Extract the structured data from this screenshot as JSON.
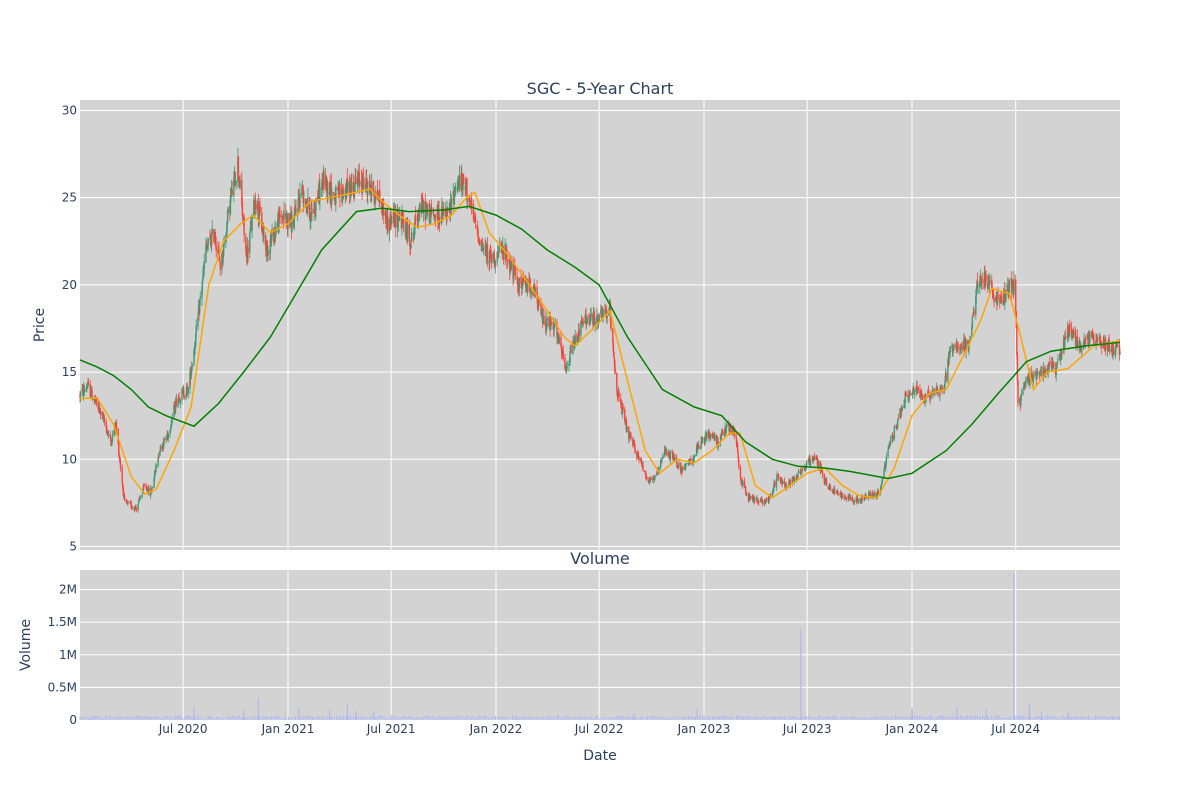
{
  "chart_data": [
    {
      "type": "candlestick",
      "title": "SGC - 5-Year Chart",
      "ylabel": "Price",
      "ylim": [
        4.8,
        30.6
      ],
      "yticks": [
        5,
        10,
        15,
        20,
        25,
        30
      ],
      "grid": true,
      "colors": {
        "up": "#3d9970",
        "down": "#ff4136",
        "ma_short": "#ffa500",
        "ma_long": "#008000",
        "plot_bg": "#d3d3d3"
      },
      "x_range": [
        "2020-01-02",
        "2024-12-31"
      ],
      "price_keypoints": [
        [
          "2020-01-02",
          13.7
        ],
        [
          "2020-01-15",
          14.2
        ],
        [
          "2020-02-10",
          12.5
        ],
        [
          "2020-02-25",
          11.0
        ],
        [
          "2020-03-05",
          12.0
        ],
        [
          "2020-03-20",
          7.5
        ],
        [
          "2020-04-10",
          7.2
        ],
        [
          "2020-04-25",
          8.5
        ],
        [
          "2020-05-05",
          8.0
        ],
        [
          "2020-05-20",
          10.5
        ],
        [
          "2020-06-05",
          11.5
        ],
        [
          "2020-06-20",
          13.5
        ],
        [
          "2020-07-10",
          14.0
        ],
        [
          "2020-07-25",
          17.5
        ],
        [
          "2020-08-10",
          22.0
        ],
        [
          "2020-08-25",
          23.0
        ],
        [
          "2020-09-05",
          21.0
        ],
        [
          "2020-09-20",
          24.5
        ],
        [
          "2020-10-05",
          27.0
        ],
        [
          "2020-10-20",
          21.5
        ],
        [
          "2020-11-05",
          25.0
        ],
        [
          "2020-11-25",
          22.0
        ],
        [
          "2020-12-20",
          24.0
        ],
        [
          "2021-01-10",
          23.5
        ],
        [
          "2021-01-25",
          25.5
        ],
        [
          "2021-02-10",
          24.0
        ],
        [
          "2021-03-05",
          26.0
        ],
        [
          "2021-03-25",
          25.0
        ],
        [
          "2021-04-15",
          25.5
        ],
        [
          "2021-05-10",
          26.0
        ],
        [
          "2021-06-10",
          25.0
        ],
        [
          "2021-06-25",
          23.5
        ],
        [
          "2021-07-15",
          24.0
        ],
        [
          "2021-08-05",
          22.5
        ],
        [
          "2021-08-20",
          24.5
        ],
        [
          "2021-09-10",
          24.0
        ],
        [
          "2021-10-10",
          24.0
        ],
        [
          "2021-10-25",
          26.0
        ],
        [
          "2021-11-10",
          25.5
        ],
        [
          "2021-11-25",
          23.5
        ],
        [
          "2021-12-10",
          22.0
        ],
        [
          "2021-12-25",
          21.5
        ],
        [
          "2022-01-15",
          22.0
        ],
        [
          "2022-02-10",
          20.0
        ],
        [
          "2022-03-05",
          20.0
        ],
        [
          "2022-03-25",
          18.0
        ],
        [
          "2022-04-15",
          17.5
        ],
        [
          "2022-05-05",
          15.0
        ],
        [
          "2022-05-15",
          16.5
        ],
        [
          "2022-06-05",
          18.0
        ],
        [
          "2022-06-25",
          18.0
        ],
        [
          "2022-07-20",
          18.5
        ],
        [
          "2022-08-01",
          14.0
        ],
        [
          "2022-08-20",
          11.5
        ],
        [
          "2022-09-10",
          10.0
        ],
        [
          "2022-09-25",
          8.8
        ],
        [
          "2022-10-10",
          9.0
        ],
        [
          "2022-10-25",
          10.5
        ],
        [
          "2022-11-10",
          10.0
        ],
        [
          "2022-11-25",
          9.3
        ],
        [
          "2022-12-10",
          10.0
        ],
        [
          "2022-12-25",
          10.8
        ],
        [
          "2023-01-10",
          11.5
        ],
        [
          "2023-01-25",
          11.0
        ],
        [
          "2023-02-10",
          11.8
        ],
        [
          "2023-02-25",
          11.5
        ],
        [
          "2023-03-05",
          9.0
        ],
        [
          "2023-03-20",
          7.8
        ],
        [
          "2023-04-10",
          7.6
        ],
        [
          "2023-04-25",
          7.7
        ],
        [
          "2023-05-10",
          9.0
        ],
        [
          "2023-05-25",
          8.5
        ],
        [
          "2023-06-10",
          9.0
        ],
        [
          "2023-06-25",
          9.5
        ],
        [
          "2023-07-15",
          10.2
        ],
        [
          "2023-08-05",
          8.5
        ],
        [
          "2023-08-25",
          8.0
        ],
        [
          "2023-09-15",
          7.8
        ],
        [
          "2023-10-01",
          7.6
        ],
        [
          "2023-10-20",
          8.0
        ],
        [
          "2023-11-05",
          8.0
        ],
        [
          "2023-11-20",
          10.5
        ],
        [
          "2023-12-05",
          12.0
        ],
        [
          "2023-12-20",
          13.5
        ],
        [
          "2024-01-10",
          14.0
        ],
        [
          "2024-01-25",
          13.5
        ],
        [
          "2024-02-10",
          14.0
        ],
        [
          "2024-02-25",
          14.0
        ],
        [
          "2024-03-10",
          16.5
        ],
        [
          "2024-03-25",
          16.5
        ],
        [
          "2024-04-10",
          16.5
        ],
        [
          "2024-04-25",
          20.0
        ],
        [
          "2024-05-10",
          20.5
        ],
        [
          "2024-05-20",
          19.5
        ],
        [
          "2024-06-05",
          19.0
        ],
        [
          "2024-06-20",
          20.0
        ],
        [
          "2024-06-30",
          20.0
        ],
        [
          "2024-07-05",
          13.0
        ],
        [
          "2024-07-20",
          14.5
        ],
        [
          "2024-08-10",
          15.0
        ],
        [
          "2024-08-25",
          15.3
        ],
        [
          "2024-09-10",
          15.2
        ],
        [
          "2024-10-01",
          17.5
        ],
        [
          "2024-10-20",
          16.5
        ],
        [
          "2024-11-10",
          17.0
        ],
        [
          "2024-12-31",
          16.2
        ]
      ],
      "ma_short": {
        "name": "",
        "points": [
          [
            "2020-01-02",
            13.5
          ],
          [
            "2020-02-01",
            13.5
          ],
          [
            "2020-03-01",
            12.0
          ],
          [
            "2020-04-01",
            9.0
          ],
          [
            "2020-04-25",
            8.0
          ],
          [
            "2020-05-15",
            8.3
          ],
          [
            "2020-06-15",
            10.5
          ],
          [
            "2020-07-15",
            13.0
          ],
          [
            "2020-08-15",
            20.0
          ],
          [
            "2020-09-10",
            22.5
          ],
          [
            "2020-10-10",
            23.5
          ],
          [
            "2020-11-01",
            24.0
          ],
          [
            "2020-12-01",
            23.0
          ],
          [
            "2021-01-01",
            23.5
          ],
          [
            "2021-02-10",
            24.8
          ],
          [
            "2021-03-15",
            25.0
          ],
          [
            "2021-04-15",
            25.2
          ],
          [
            "2021-05-25",
            25.5
          ],
          [
            "2021-06-15",
            24.8
          ],
          [
            "2021-07-15",
            24.0
          ],
          [
            "2021-08-15",
            23.3
          ],
          [
            "2021-09-15",
            23.5
          ],
          [
            "2021-10-15",
            24.0
          ],
          [
            "2021-11-10",
            25.0
          ],
          [
            "2021-11-25",
            25.3
          ],
          [
            "2021-12-20",
            23.0
          ],
          [
            "2022-01-20",
            21.8
          ],
          [
            "2022-03-01",
            20.0
          ],
          [
            "2022-04-01",
            18.5
          ],
          [
            "2022-05-01",
            17.0
          ],
          [
            "2022-05-20",
            16.5
          ],
          [
            "2022-06-20",
            17.5
          ],
          [
            "2022-07-20",
            18.5
          ],
          [
            "2022-08-20",
            14.5
          ],
          [
            "2022-09-20",
            10.5
          ],
          [
            "2022-10-15",
            9.2
          ],
          [
            "2022-11-15",
            10.0
          ],
          [
            "2022-12-15",
            9.8
          ],
          [
            "2023-01-15",
            10.5
          ],
          [
            "2023-02-15",
            11.5
          ],
          [
            "2023-03-05",
            11.5
          ],
          [
            "2023-04-01",
            8.5
          ],
          [
            "2023-05-01",
            7.8
          ],
          [
            "2023-06-01",
            8.5
          ],
          [
            "2023-07-01",
            9.2
          ],
          [
            "2023-08-01",
            9.5
          ],
          [
            "2023-09-01",
            8.5
          ],
          [
            "2023-10-01",
            7.9
          ],
          [
            "2023-11-01",
            7.8
          ],
          [
            "2023-12-01",
            9.5
          ],
          [
            "2024-01-01",
            12.5
          ],
          [
            "2024-02-01",
            13.8
          ],
          [
            "2024-03-01",
            14.0
          ],
          [
            "2024-04-01",
            16.0
          ],
          [
            "2024-05-01",
            18.0
          ],
          [
            "2024-05-20",
            19.8
          ],
          [
            "2024-06-20",
            19.5
          ],
          [
            "2024-07-10",
            17.0
          ],
          [
            "2024-08-01",
            14.0
          ],
          [
            "2024-08-25",
            15.0
          ],
          [
            "2024-10-01",
            15.2
          ],
          [
            "2024-11-15",
            16.5
          ],
          [
            "2024-12-31",
            16.8
          ]
        ]
      },
      "ma_long": {
        "name": "",
        "points": [
          [
            "2020-01-02",
            15.7
          ],
          [
            "2020-02-01",
            15.3
          ],
          [
            "2020-03-01",
            14.8
          ],
          [
            "2020-04-01",
            14.0
          ],
          [
            "2020-05-01",
            13.0
          ],
          [
            "2020-06-01",
            12.5
          ],
          [
            "2020-07-20",
            11.9
          ],
          [
            "2020-09-01",
            13.2
          ],
          [
            "2020-10-15",
            15.0
          ],
          [
            "2020-12-01",
            17.0
          ],
          [
            "2021-01-15",
            19.5
          ],
          [
            "2021-03-01",
            22.0
          ],
          [
            "2021-05-01",
            24.2
          ],
          [
            "2021-06-15",
            24.4
          ],
          [
            "2021-08-01",
            24.2
          ],
          [
            "2021-10-01",
            24.3
          ],
          [
            "2021-11-15",
            24.5
          ],
          [
            "2022-01-01",
            24.0
          ],
          [
            "2022-02-15",
            23.2
          ],
          [
            "2022-04-01",
            22.0
          ],
          [
            "2022-05-20",
            21.0
          ],
          [
            "2022-07-01",
            20.0
          ],
          [
            "2022-08-20",
            17.0
          ],
          [
            "2022-10-20",
            14.0
          ],
          [
            "2022-12-15",
            13.0
          ],
          [
            "2023-02-01",
            12.5
          ],
          [
            "2023-03-15",
            11.0
          ],
          [
            "2023-05-01",
            10.0
          ],
          [
            "2023-06-15",
            9.6
          ],
          [
            "2023-08-01",
            9.5
          ],
          [
            "2023-09-15",
            9.3
          ],
          [
            "2023-11-20",
            8.9
          ],
          [
            "2024-01-01",
            9.2
          ],
          [
            "2024-03-01",
            10.5
          ],
          [
            "2024-04-15",
            12.0
          ],
          [
            "2024-06-01",
            13.8
          ],
          [
            "2024-07-20",
            15.6
          ],
          [
            "2024-09-01",
            16.2
          ],
          [
            "2024-11-01",
            16.5
          ],
          [
            "2024-12-31",
            16.7
          ]
        ]
      }
    },
    {
      "type": "bar",
      "title": "Volume",
      "xlabel": "Date",
      "ylabel": "Volume",
      "ylim": [
        0,
        2300000
      ],
      "yticks": [
        0,
        500000,
        1000000,
        1500000,
        2000000
      ],
      "ytick_labels": [
        "0",
        "0.5M",
        "1M",
        "1.5M",
        "2M"
      ],
      "xticks": [
        "2020-07-01",
        "2021-01-01",
        "2021-07-01",
        "2022-01-01",
        "2022-07-01",
        "2023-01-01",
        "2023-07-01",
        "2024-01-01",
        "2024-07-01"
      ],
      "xtick_labels": [
        "Jul 2020",
        "Jan 2021",
        "Jul 2021",
        "Jan 2022",
        "Jul 2022",
        "Jan 2023",
        "Jul 2023",
        "Jan 2024",
        "Jul 2024"
      ],
      "grid": true,
      "colors": {
        "bar": "#b0b6f0",
        "plot_bg": "#d3d3d3"
      },
      "baseline": 50000,
      "spikes": [
        [
          "2020-07-20",
          190000
        ],
        [
          "2020-10-15",
          150000
        ],
        [
          "2020-11-10",
          340000
        ],
        [
          "2021-01-20",
          180000
        ],
        [
          "2021-03-15",
          150000
        ],
        [
          "2021-04-15",
          250000
        ],
        [
          "2021-05-01",
          140000
        ],
        [
          "2021-06-01",
          130000
        ],
        [
          "2022-09-01",
          100000
        ],
        [
          "2022-12-20",
          170000
        ],
        [
          "2023-06-20",
          1400000
        ],
        [
          "2024-01-01",
          180000
        ],
        [
          "2024-03-20",
          200000
        ],
        [
          "2024-05-10",
          170000
        ],
        [
          "2024-06-28",
          2250000
        ],
        [
          "2024-07-25",
          250000
        ],
        [
          "2024-08-15",
          140000
        ],
        [
          "2024-10-01",
          120000
        ]
      ]
    }
  ]
}
